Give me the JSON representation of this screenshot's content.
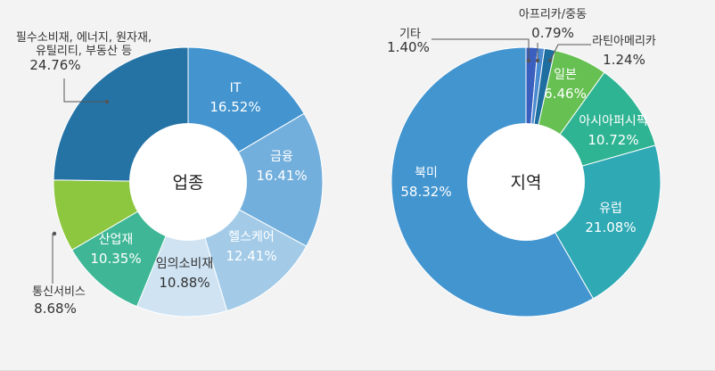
{
  "colors": {
    "background": "#f3f3f3",
    "center": "#ffffff",
    "leader": "#555555",
    "outside_text": "#333333",
    "inside_text": "#ffffff",
    "inside_text_dark": "#333333"
  },
  "chart_data": [
    {
      "type": "pie",
      "center_label": "업종",
      "unit": "%",
      "slices": [
        {
          "label": "IT",
          "value": 16.52,
          "value_text": "16.52%",
          "color": "#4394cf"
        },
        {
          "label": "금융",
          "value": 16.41,
          "value_text": "16.41%",
          "color": "#73afdc"
        },
        {
          "label": "헬스케어",
          "value": 12.41,
          "value_text": "12.41%",
          "color": "#a3cbe8"
        },
        {
          "label": "임의소비재",
          "value": 10.88,
          "value_text": "10.88%",
          "color": "#cfe3f3"
        },
        {
          "label": "산업재",
          "value": 10.35,
          "value_text": "10.35%",
          "color": "#3fb796"
        },
        {
          "label": "통신서비스",
          "value": 8.68,
          "value_text": "8.68%",
          "color": "#8dc63f"
        },
        {
          "label": "필수소비재, 에너지, 원자재, 유틸리티, 부동산 등",
          "label_lines": [
            "필수소비재, 에너지, 원자재,",
            "유틸리티, 부동산 등"
          ],
          "value": 24.76,
          "value_text": "24.76%",
          "color": "#2573a5"
        }
      ]
    },
    {
      "type": "pie",
      "center_label": "지역",
      "unit": "%",
      "slices": [
        {
          "label": "기타",
          "value": 1.4,
          "value_text": "1.40%",
          "color": "#3a5fbf"
        },
        {
          "label": "아프리카/중동",
          "value": 0.79,
          "value_text": "0.79%",
          "color": "#4a8ad0"
        },
        {
          "label": "라틴아메리카",
          "value": 1.24,
          "value_text": "1.24%",
          "color": "#1f6ea0"
        },
        {
          "label": "일본",
          "value": 6.46,
          "value_text": "6.46%",
          "color": "#66c052"
        },
        {
          "label": "아시아퍼시픽",
          "value": 10.72,
          "value_text": "10.72%",
          "color": "#2fb493"
        },
        {
          "label": "유럽",
          "value": 21.08,
          "value_text": "21.08%",
          "color": "#2fa9b4"
        },
        {
          "label": "북미",
          "value": 58.32,
          "value_text": "58.32%",
          "color": "#4395d0"
        }
      ]
    }
  ]
}
